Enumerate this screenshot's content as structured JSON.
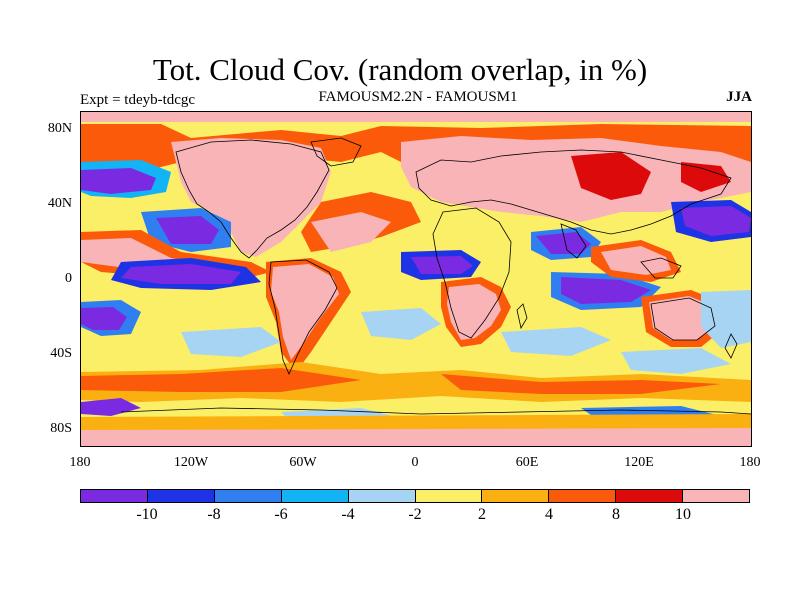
{
  "title": "Tot. Cloud Cov. (random overlap, in %)",
  "subtitle_left": "Expt = tdeyb-tdcgc",
  "subtitle_center": "FAMOUSM2.2N - FAMOUSM1",
  "subtitle_right": "JJA",
  "lat_labels": [
    "80N",
    "40N",
    "0",
    "40S",
    "80S"
  ],
  "lon_labels": [
    "180",
    "120W",
    "60W",
    "0",
    "60E",
    "120E",
    "180"
  ],
  "colorbar": {
    "colors": [
      "#7a2be2",
      "#1e32e6",
      "#2f7ff0",
      "#12b4f5",
      "#a7d4f2",
      "#fbef67",
      "#fbb012",
      "#fb5a0a",
      "#dc0a0a",
      "#f8b4b7"
    ],
    "labels": [
      "-10",
      "-8",
      "-6",
      "-4",
      "-2",
      "2",
      "4",
      "8",
      "10"
    ]
  }
}
